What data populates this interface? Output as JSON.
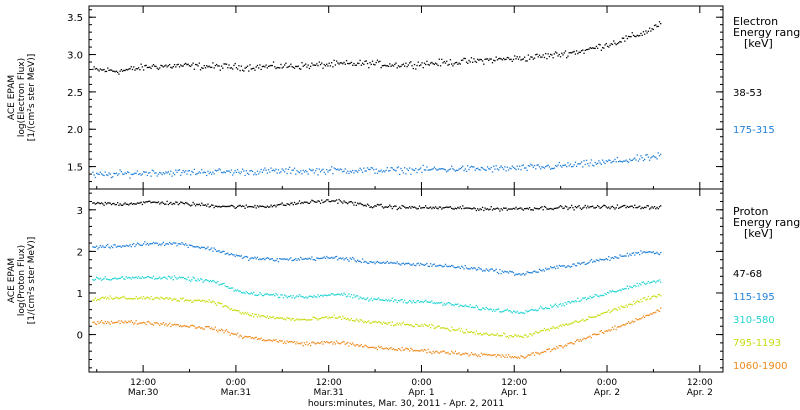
{
  "x_axis": {
    "title": "hours:minutes, Mar. 30, 2011 - Apr.  2, 2011",
    "ticks": [
      {
        "t": 12,
        "time": "12:00",
        "date": "Mar.30"
      },
      {
        "t": 24,
        "time": "0:00",
        "date": "Mar.31"
      },
      {
        "t": 36,
        "time": "12:00",
        "date": "Mar.31"
      },
      {
        "t": 48,
        "time": "0:00",
        "date": "Apr. 1"
      },
      {
        "t": 60,
        "time": "12:00",
        "date": "Apr. 1"
      },
      {
        "t": 72,
        "time": "0:00",
        "date": "Apr. 2"
      },
      {
        "t": 84,
        "time": "12:00",
        "date": "Apr. 2"
      }
    ]
  },
  "panels": {
    "electron": {
      "ylabel_1": "ACE EPAM",
      "ylabel_2": "log(Electron Flux)",
      "ylabel_3": "[1/(cm²s ster MeV)]",
      "legend_title_1": "Electron",
      "legend_title_2": "Energy range",
      "legend_title_3": "[keV]"
    },
    "proton": {
      "ylabel_1": "ACE EPAM",
      "ylabel_2": "log(Proton Flux)",
      "ylabel_3": "[1/(cm²s ster MeV)]",
      "legend_title_1": "Proton",
      "legend_title_2": "Energy range",
      "legend_title_3": "[keV]"
    }
  },
  "chart_data": [
    {
      "type": "scatter",
      "panel": "electron",
      "xlabel": "hours:minutes, Mar. 30, 2011 - Apr.  2, 2011",
      "ylabel": "ACE EPAM log(Electron Flux) [1/(cm²s ster MeV)]",
      "x_units": "hours since Mar. 30, 2011 00:00",
      "xlim": [
        5,
        87
      ],
      "ylim": [
        1.2,
        3.65
      ],
      "yticks": [
        1.5,
        2.0,
        2.5,
        3.0,
        3.5
      ],
      "ytick_labels": [
        "1.5",
        "2.0",
        "2.5",
        "3.0",
        "3.5"
      ],
      "grid": false,
      "legend_position": "right",
      "series": [
        {
          "name": "38-53",
          "color": "#000000",
          "x": [
            5,
            9,
            13,
            17,
            21,
            25,
            29,
            33,
            37,
            41,
            45,
            49,
            53,
            57,
            61,
            65,
            69,
            73,
            77,
            79
          ],
          "y": [
            2.8,
            2.78,
            2.84,
            2.85,
            2.84,
            2.83,
            2.84,
            2.85,
            2.87,
            2.88,
            2.86,
            2.88,
            2.9,
            2.93,
            2.95,
            2.99,
            3.05,
            3.16,
            3.3,
            3.42
          ]
        },
        {
          "name": "175-315",
          "color": "#1f7fd8",
          "x": [
            5,
            9,
            13,
            17,
            21,
            25,
            29,
            33,
            37,
            41,
            45,
            49,
            53,
            57,
            61,
            65,
            69,
            73,
            77,
            79
          ],
          "y": [
            1.38,
            1.4,
            1.42,
            1.42,
            1.43,
            1.43,
            1.44,
            1.44,
            1.45,
            1.45,
            1.45,
            1.46,
            1.47,
            1.47,
            1.48,
            1.5,
            1.53,
            1.57,
            1.61,
            1.64
          ]
        }
      ]
    },
    {
      "type": "scatter",
      "panel": "proton",
      "xlabel": "hours:minutes, Mar. 30, 2011 - Apr.  2, 2011",
      "ylabel": "ACE EPAM log(Proton Flux) [1/(cm²s ster MeV)]",
      "x_units": "hours since Mar. 30, 2011 00:00",
      "xlim": [
        5,
        87
      ],
      "ylim": [
        -0.9,
        3.5
      ],
      "yticks": [
        0,
        1,
        2,
        3
      ],
      "ytick_labels": [
        "0",
        "1",
        "2",
        "3"
      ],
      "grid": false,
      "legend_position": "right",
      "series": [
        {
          "name": "47-68",
          "color": "#000000",
          "x": [
            5,
            9,
            13,
            17,
            21,
            25,
            29,
            33,
            37,
            41,
            45,
            49,
            53,
            57,
            61,
            65,
            69,
            73,
            77,
            79
          ],
          "y": [
            3.15,
            3.14,
            3.18,
            3.15,
            3.1,
            3.07,
            3.1,
            3.18,
            3.22,
            3.1,
            3.06,
            3.05,
            3.04,
            3.02,
            3.03,
            3.05,
            3.06,
            3.07,
            3.07,
            3.06
          ]
        },
        {
          "name": "115-195",
          "color": "#1f7fd8",
          "x": [
            5,
            9,
            13,
            17,
            21,
            25,
            29,
            33,
            37,
            41,
            45,
            49,
            53,
            57,
            61,
            65,
            69,
            73,
            77,
            79
          ],
          "y": [
            2.1,
            2.12,
            2.2,
            2.18,
            2.05,
            1.85,
            1.8,
            1.82,
            1.85,
            1.75,
            1.7,
            1.68,
            1.62,
            1.55,
            1.45,
            1.6,
            1.72,
            1.85,
            2.0,
            1.95
          ]
        },
        {
          "name": "310-580",
          "color": "#22d3d3",
          "x": [
            5,
            9,
            13,
            17,
            21,
            25,
            29,
            33,
            37,
            41,
            45,
            49,
            53,
            57,
            61,
            65,
            69,
            73,
            77,
            79
          ],
          "y": [
            1.35,
            1.35,
            1.38,
            1.35,
            1.28,
            1.0,
            0.95,
            0.9,
            0.98,
            0.85,
            0.82,
            0.78,
            0.7,
            0.6,
            0.55,
            0.68,
            0.85,
            1.05,
            1.25,
            1.3
          ]
        },
        {
          "name": "795-1193",
          "color": "#c8dc10",
          "x": [
            5,
            9,
            13,
            17,
            21,
            25,
            29,
            33,
            37,
            41,
            45,
            49,
            53,
            57,
            61,
            65,
            69,
            73,
            77,
            79
          ],
          "y": [
            0.85,
            0.88,
            0.88,
            0.84,
            0.8,
            0.5,
            0.4,
            0.35,
            0.42,
            0.3,
            0.25,
            0.2,
            0.1,
            0.0,
            -0.05,
            0.15,
            0.35,
            0.6,
            0.85,
            0.95
          ]
        },
        {
          "name": "1060-1900",
          "color": "#f08a1c",
          "x": [
            5,
            9,
            13,
            17,
            21,
            25,
            29,
            33,
            37,
            41,
            45,
            49,
            53,
            57,
            61,
            65,
            69,
            73,
            77,
            79
          ],
          "y": [
            0.3,
            0.3,
            0.28,
            0.22,
            0.15,
            -0.05,
            -0.15,
            -0.22,
            -0.18,
            -0.3,
            -0.35,
            -0.4,
            -0.45,
            -0.5,
            -0.55,
            -0.35,
            -0.1,
            0.15,
            0.45,
            0.6
          ]
        }
      ]
    }
  ]
}
